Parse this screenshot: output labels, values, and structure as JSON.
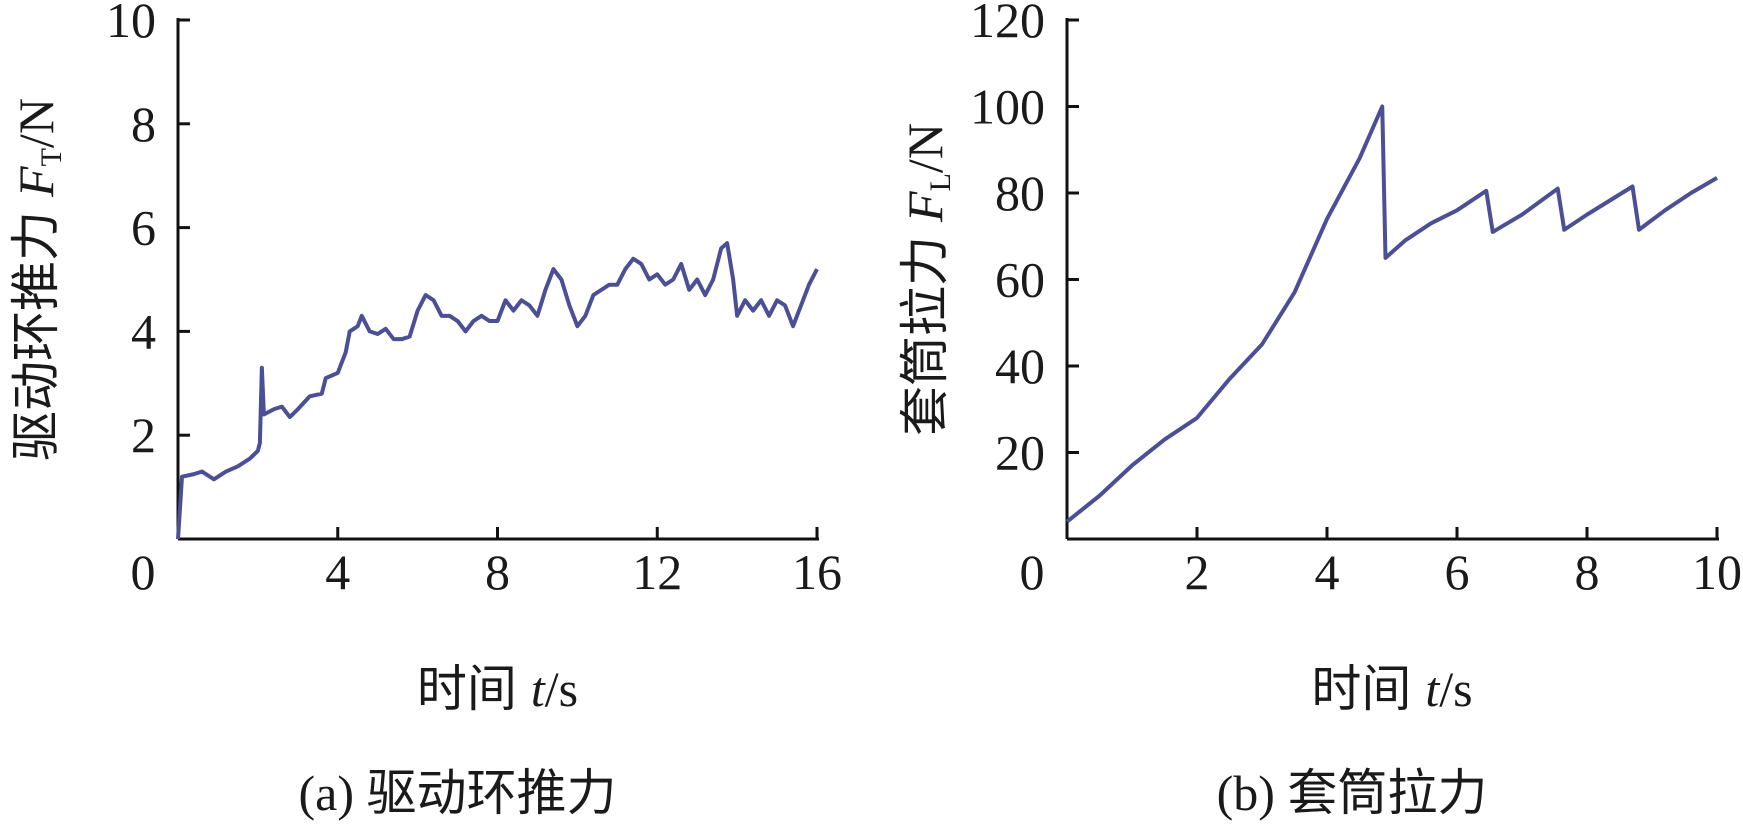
{
  "chart_data": [
    {
      "type": "line",
      "caption": "(a) 驱动环推力",
      "x_label": {
        "text": "时间",
        "symbol": "t",
        "unit": "/s"
      },
      "y_label": {
        "text": "驱动环推力",
        "symbol": "F",
        "subscript": "T",
        "unit": "/N"
      },
      "xlim": [
        0,
        16
      ],
      "xticks": [
        0,
        4,
        8,
        12,
        16
      ],
      "ylim": [
        0,
        10
      ],
      "yticks": [
        2,
        4,
        6,
        8,
        10
      ],
      "x": [
        0,
        0.1,
        0.4,
        0.6,
        0.9,
        1.2,
        1.5,
        1.8,
        2.0,
        2.05,
        2.1,
        2.15,
        2.4,
        2.6,
        2.8,
        3.0,
        3.3,
        3.6,
        3.7,
        4.0,
        4.2,
        4.3,
        4.5,
        4.6,
        4.8,
        5.0,
        5.2,
        5.4,
        5.6,
        5.8,
        6.0,
        6.2,
        6.4,
        6.6,
        6.8,
        7.0,
        7.2,
        7.4,
        7.6,
        7.8,
        8.0,
        8.2,
        8.4,
        8.6,
        8.8,
        9.0,
        9.2,
        9.4,
        9.6,
        9.8,
        10.0,
        10.2,
        10.4,
        10.6,
        10.8,
        11.0,
        11.2,
        11.4,
        11.6,
        11.8,
        12.0,
        12.2,
        12.4,
        12.6,
        12.8,
        13.0,
        13.2,
        13.4,
        13.6,
        13.75,
        13.9,
        14.0,
        14.2,
        14.4,
        14.6,
        14.8,
        15.0,
        15.2,
        15.4,
        15.6,
        15.8,
        16.0
      ],
      "series": [
        {
          "color": "#4a4f96",
          "values": [
            0,
            1.2,
            1.25,
            1.3,
            1.15,
            1.3,
            1.4,
            1.55,
            1.7,
            1.85,
            3.3,
            2.4,
            2.5,
            2.55,
            2.35,
            2.5,
            2.75,
            2.8,
            3.1,
            3.2,
            3.6,
            4.0,
            4.1,
            4.3,
            4.0,
            3.95,
            4.05,
            3.85,
            3.85,
            3.9,
            4.4,
            4.7,
            4.6,
            4.3,
            4.3,
            4.2,
            4.0,
            4.2,
            4.3,
            4.2,
            4.2,
            4.6,
            4.4,
            4.6,
            4.5,
            4.3,
            4.8,
            5.2,
            5.0,
            4.5,
            4.1,
            4.3,
            4.7,
            4.8,
            4.9,
            4.9,
            5.2,
            5.4,
            5.3,
            5.0,
            5.1,
            4.9,
            5.0,
            5.3,
            4.8,
            5.0,
            4.7,
            5.0,
            5.6,
            5.7,
            5.0,
            4.3,
            4.6,
            4.4,
            4.6,
            4.3,
            4.6,
            4.5,
            4.1,
            4.5,
            4.9,
            5.2
          ]
        }
      ]
    },
    {
      "type": "line",
      "caption": "(b) 套筒拉力",
      "x_label": {
        "text": "时间",
        "symbol": "t",
        "unit": "/s"
      },
      "y_label": {
        "text": "套筒拉力",
        "symbol": "F",
        "subscript": "L",
        "unit": "/N"
      },
      "xlim": [
        0,
        10
      ],
      "xticks": [
        0,
        2,
        4,
        6,
        8,
        10
      ],
      "ylim": [
        0,
        120
      ],
      "yticks": [
        20,
        40,
        60,
        80,
        100,
        120
      ],
      "x": [
        0,
        0.5,
        1,
        1.5,
        2,
        2.5,
        3,
        3.25,
        3.5,
        4,
        4.5,
        4.85,
        4.9,
        5.2,
        5.6,
        6,
        6.45,
        6.55,
        7,
        7.55,
        7.65,
        8,
        8.7,
        8.8,
        9.2,
        9.6,
        10
      ],
      "series": [
        {
          "color": "#4a4f96",
          "values": [
            4,
            10,
            17,
            23,
            28,
            37,
            45,
            51,
            57,
            74,
            88,
            100,
            65,
            69,
            73,
            76,
            80.5,
            71,
            75,
            81,
            71.5,
            75,
            81.5,
            71.5,
            76,
            80,
            83.5
          ]
        }
      ]
    }
  ]
}
